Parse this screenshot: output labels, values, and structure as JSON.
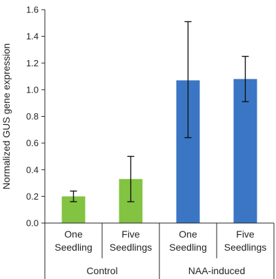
{
  "chart_data": {
    "type": "bar",
    "ylabel": "Normalized GUS gene expression",
    "ylim": [
      0,
      1.6
    ],
    "yticks": [
      "0.0",
      "0.2",
      "0.4",
      "0.6",
      "0.8",
      "1.0",
      "1.2",
      "1.4",
      "1.6"
    ],
    "categories": [
      "One Seedling",
      "Five Seedlings",
      "One Seedling",
      "Five Seedlings"
    ],
    "category_lines": [
      [
        "One",
        "Seedling"
      ],
      [
        "Five",
        "Seedlings"
      ],
      [
        "One",
        "Seedling"
      ],
      [
        "Five",
        "Seedlings"
      ]
    ],
    "groups": [
      {
        "label": "Control",
        "categories": [
          0,
          1
        ]
      },
      {
        "label": "NAA-induced",
        "categories": [
          2,
          3
        ]
      }
    ],
    "values": [
      0.2,
      0.33,
      1.07,
      1.08
    ],
    "error_low": [
      0.16,
      0.16,
      0.64,
      0.91
    ],
    "error_high": [
      0.24,
      0.5,
      1.51,
      1.25
    ],
    "bar_colors": [
      "#82c341",
      "#82c341",
      "#3a76c4",
      "#3a76c4"
    ],
    "grid": false,
    "legend": "none"
  }
}
